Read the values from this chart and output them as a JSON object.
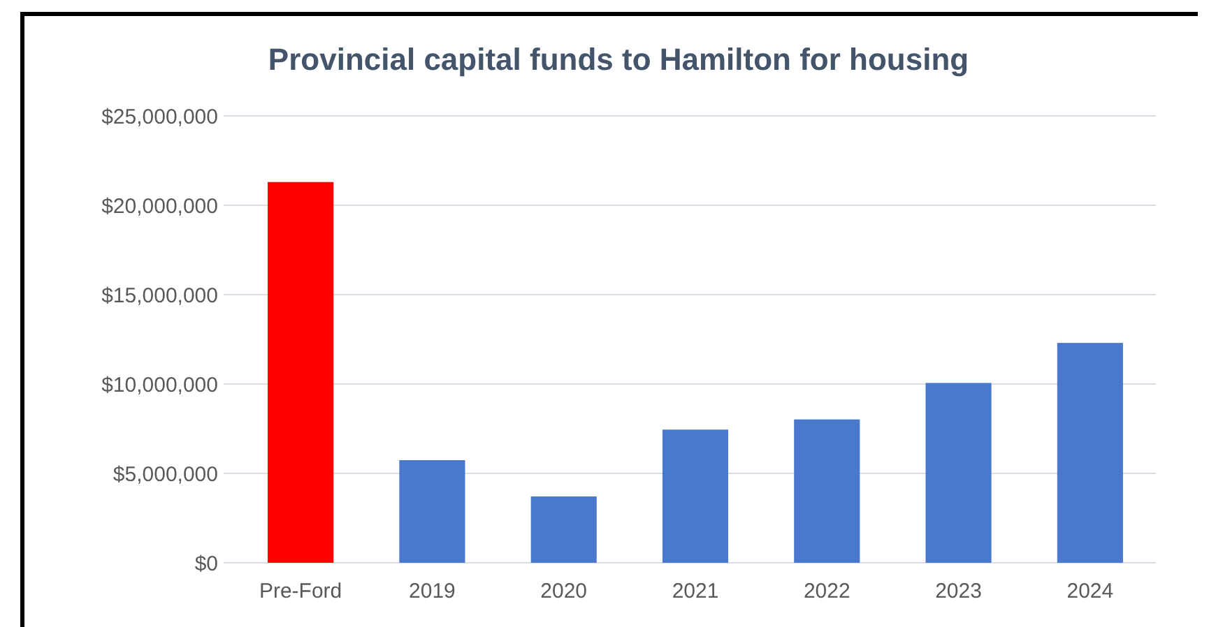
{
  "chart_data": {
    "type": "bar",
    "title": "Provincial capital funds to Hamilton for housing",
    "categories": [
      "Pre-Ford",
      "2019",
      "2020",
      "2021",
      "2022",
      "2023",
      "2024"
    ],
    "values": [
      21300000,
      5740000,
      3710000,
      7450000,
      8020000,
      10060000,
      12300000
    ],
    "colors": [
      "#ff0000",
      "#4a78cc",
      "#4a78cc",
      "#4a78cc",
      "#4a78cc",
      "#4a78cc",
      "#4a78cc"
    ],
    "ylim": [
      0,
      25000000
    ],
    "yticks": [
      {
        "value": 0,
        "label": "$0"
      },
      {
        "value": 5000000,
        "label": "$5,000,000"
      },
      {
        "value": 10000000,
        "label": "$10,000,000"
      },
      {
        "value": 15000000,
        "label": "$15,000,000"
      },
      {
        "value": 20000000,
        "label": "$20,000,000"
      },
      {
        "value": 25000000,
        "label": "$25,000,000"
      }
    ],
    "grid": "y"
  }
}
